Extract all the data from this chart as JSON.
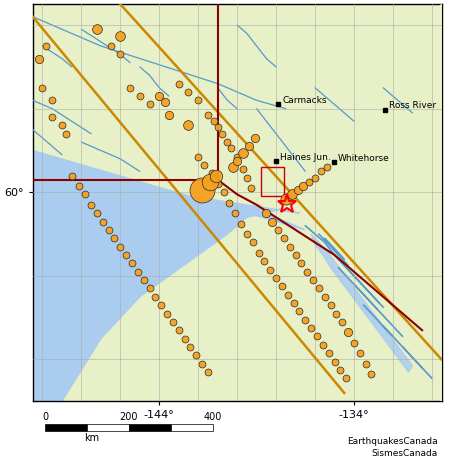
{
  "figsize": [
    4.49,
    4.58
  ],
  "dpi": 100,
  "xlim": [
    -150.5,
    -129.5
  ],
  "ylim": [
    55.0,
    64.5
  ],
  "land_color": "#e8f0c8",
  "ocean_color": "#aaccee",
  "river_color": "#5599cc",
  "cities": [
    {
      "name": "Carmacks",
      "lon": -137.9,
      "lat": 62.1
    },
    {
      "name": "Ross River",
      "lon": -132.4,
      "lat": 61.98
    },
    {
      "name": "Haines Jun.",
      "lon": -138.0,
      "lat": 60.75
    },
    {
      "name": "Whitehorse",
      "lon": -135.05,
      "lat": 60.72
    }
  ],
  "star": {
    "lon": -137.45,
    "lat": 59.72,
    "size": 14
  },
  "earthquakes": [
    {
      "lon": -147.2,
      "lat": 63.9,
      "ms": 7
    },
    {
      "lon": -146.0,
      "lat": 63.75,
      "ms": 7
    },
    {
      "lon": -144.0,
      "lat": 62.3,
      "ms": 6
    },
    {
      "lon": -143.7,
      "lat": 62.15,
      "ms": 6
    },
    {
      "lon": -141.5,
      "lat": 61.85,
      "ms": 5
    },
    {
      "lon": -141.2,
      "lat": 61.7,
      "ms": 5
    },
    {
      "lon": -141.0,
      "lat": 61.55,
      "ms": 5
    },
    {
      "lon": -140.8,
      "lat": 61.4,
      "ms": 5
    },
    {
      "lon": -140.5,
      "lat": 61.2,
      "ms": 5
    },
    {
      "lon": -140.3,
      "lat": 61.05,
      "ms": 5
    },
    {
      "lon": -140.0,
      "lat": 60.85,
      "ms": 5
    },
    {
      "lon": -139.7,
      "lat": 60.55,
      "ms": 5
    },
    {
      "lon": -139.5,
      "lat": 60.35,
      "ms": 5
    },
    {
      "lon": -139.3,
      "lat": 60.1,
      "ms": 5
    },
    {
      "lon": -142.0,
      "lat": 60.85,
      "ms": 5
    },
    {
      "lon": -141.7,
      "lat": 60.65,
      "ms": 5
    },
    {
      "lon": -141.3,
      "lat": 60.45,
      "ms": 5
    },
    {
      "lon": -141.0,
      "lat": 60.2,
      "ms": 5
    },
    {
      "lon": -140.7,
      "lat": 60.0,
      "ms": 5
    },
    {
      "lon": -140.4,
      "lat": 59.75,
      "ms": 5
    },
    {
      "lon": -140.1,
      "lat": 59.5,
      "ms": 5
    },
    {
      "lon": -139.8,
      "lat": 59.25,
      "ms": 5
    },
    {
      "lon": -139.5,
      "lat": 59.0,
      "ms": 5
    },
    {
      "lon": -139.2,
      "lat": 58.8,
      "ms": 5
    },
    {
      "lon": -138.9,
      "lat": 58.55,
      "ms": 5
    },
    {
      "lon": -138.6,
      "lat": 58.35,
      "ms": 5
    },
    {
      "lon": -138.3,
      "lat": 58.15,
      "ms": 5
    },
    {
      "lon": -138.0,
      "lat": 57.95,
      "ms": 5
    },
    {
      "lon": -137.7,
      "lat": 57.75,
      "ms": 5
    },
    {
      "lon": -137.4,
      "lat": 57.55,
      "ms": 5
    },
    {
      "lon": -137.1,
      "lat": 57.35,
      "ms": 5
    },
    {
      "lon": -136.8,
      "lat": 57.15,
      "ms": 5
    },
    {
      "lon": -136.5,
      "lat": 56.95,
      "ms": 5
    },
    {
      "lon": -136.2,
      "lat": 56.75,
      "ms": 5
    },
    {
      "lon": -135.9,
      "lat": 56.55,
      "ms": 5
    },
    {
      "lon": -135.6,
      "lat": 56.35,
      "ms": 5
    },
    {
      "lon": -135.3,
      "lat": 56.15,
      "ms": 5
    },
    {
      "lon": -135.0,
      "lat": 55.95,
      "ms": 5
    },
    {
      "lon": -134.7,
      "lat": 55.75,
      "ms": 5
    },
    {
      "lon": -134.4,
      "lat": 55.55,
      "ms": 5
    },
    {
      "lon": -148.5,
      "lat": 60.4,
      "ms": 5
    },
    {
      "lon": -148.1,
      "lat": 60.15,
      "ms": 5
    },
    {
      "lon": -147.8,
      "lat": 59.95,
      "ms": 5
    },
    {
      "lon": -147.5,
      "lat": 59.7,
      "ms": 5
    },
    {
      "lon": -147.2,
      "lat": 59.5,
      "ms": 5
    },
    {
      "lon": -146.9,
      "lat": 59.3,
      "ms": 5
    },
    {
      "lon": -146.6,
      "lat": 59.1,
      "ms": 5
    },
    {
      "lon": -146.3,
      "lat": 58.9,
      "ms": 5
    },
    {
      "lon": -146.0,
      "lat": 58.7,
      "ms": 5
    },
    {
      "lon": -145.7,
      "lat": 58.5,
      "ms": 5
    },
    {
      "lon": -145.4,
      "lat": 58.3,
      "ms": 5
    },
    {
      "lon": -145.1,
      "lat": 58.1,
      "ms": 5
    },
    {
      "lon": -144.8,
      "lat": 57.9,
      "ms": 5
    },
    {
      "lon": -144.5,
      "lat": 57.7,
      "ms": 5
    },
    {
      "lon": -144.2,
      "lat": 57.5,
      "ms": 5
    },
    {
      "lon": -143.9,
      "lat": 57.3,
      "ms": 5
    },
    {
      "lon": -143.6,
      "lat": 57.1,
      "ms": 5
    },
    {
      "lon": -143.3,
      "lat": 56.9,
      "ms": 5
    },
    {
      "lon": -143.0,
      "lat": 56.7,
      "ms": 5
    },
    {
      "lon": -142.7,
      "lat": 56.5,
      "ms": 5
    },
    {
      "lon": -142.4,
      "lat": 56.3,
      "ms": 5
    },
    {
      "lon": -142.1,
      "lat": 56.1,
      "ms": 5
    },
    {
      "lon": -141.8,
      "lat": 55.9,
      "ms": 5
    },
    {
      "lon": -141.5,
      "lat": 55.7,
      "ms": 5
    },
    {
      "lon": -141.8,
      "lat": 60.05,
      "ms": 18
    },
    {
      "lon": -141.4,
      "lat": 60.25,
      "ms": 12
    },
    {
      "lon": -141.1,
      "lat": 60.4,
      "ms": 9
    },
    {
      "lon": -140.2,
      "lat": 60.6,
      "ms": 7
    },
    {
      "lon": -140.0,
      "lat": 60.75,
      "ms": 6
    },
    {
      "lon": -139.7,
      "lat": 60.95,
      "ms": 7
    },
    {
      "lon": -139.4,
      "lat": 61.1,
      "ms": 6
    },
    {
      "lon": -139.1,
      "lat": 61.3,
      "ms": 6
    },
    {
      "lon": -142.5,
      "lat": 61.6,
      "ms": 7
    },
    {
      "lon": -143.5,
      "lat": 61.85,
      "ms": 6
    },
    {
      "lon": -137.5,
      "lat": 59.85,
      "ms": 8
    },
    {
      "lon": -137.2,
      "lat": 59.95,
      "ms": 7
    },
    {
      "lon": -136.9,
      "lat": 60.05,
      "ms": 6
    },
    {
      "lon": -136.6,
      "lat": 60.15,
      "ms": 6
    },
    {
      "lon": -136.3,
      "lat": 60.25,
      "ms": 5
    },
    {
      "lon": -136.0,
      "lat": 60.35,
      "ms": 5
    },
    {
      "lon": -135.7,
      "lat": 60.5,
      "ms": 5
    },
    {
      "lon": -135.4,
      "lat": 60.6,
      "ms": 5
    },
    {
      "lon": -149.5,
      "lat": 61.8,
      "ms": 5
    },
    {
      "lon": -149.0,
      "lat": 61.6,
      "ms": 5
    },
    {
      "lon": -148.8,
      "lat": 61.4,
      "ms": 5
    },
    {
      "lon": -150.0,
      "lat": 62.5,
      "ms": 5
    },
    {
      "lon": -149.5,
      "lat": 62.2,
      "ms": 5
    },
    {
      "lon": -145.5,
      "lat": 62.5,
      "ms": 5
    },
    {
      "lon": -145.0,
      "lat": 62.3,
      "ms": 5
    },
    {
      "lon": -144.5,
      "lat": 62.1,
      "ms": 5
    },
    {
      "lon": -143.0,
      "lat": 62.6,
      "ms": 5
    },
    {
      "lon": -142.5,
      "lat": 62.4,
      "ms": 5
    },
    {
      "lon": -142.0,
      "lat": 62.2,
      "ms": 5
    },
    {
      "lon": -138.5,
      "lat": 59.5,
      "ms": 6
    },
    {
      "lon": -138.2,
      "lat": 59.3,
      "ms": 6
    },
    {
      "lon": -137.9,
      "lat": 59.1,
      "ms": 5
    },
    {
      "lon": -137.6,
      "lat": 58.9,
      "ms": 5
    },
    {
      "lon": -137.3,
      "lat": 58.7,
      "ms": 5
    },
    {
      "lon": -137.0,
      "lat": 58.5,
      "ms": 5
    },
    {
      "lon": -136.7,
      "lat": 58.3,
      "ms": 5
    },
    {
      "lon": -136.4,
      "lat": 58.1,
      "ms": 5
    },
    {
      "lon": -136.1,
      "lat": 57.9,
      "ms": 5
    },
    {
      "lon": -135.8,
      "lat": 57.7,
      "ms": 5
    },
    {
      "lon": -135.5,
      "lat": 57.5,
      "ms": 5
    },
    {
      "lon": -135.2,
      "lat": 57.3,
      "ms": 5
    },
    {
      "lon": -134.9,
      "lat": 57.1,
      "ms": 5
    },
    {
      "lon": -134.6,
      "lat": 56.9,
      "ms": 5
    },
    {
      "lon": -134.3,
      "lat": 56.65,
      "ms": 6
    },
    {
      "lon": -134.0,
      "lat": 56.4,
      "ms": 5
    },
    {
      "lon": -133.7,
      "lat": 56.15,
      "ms": 5
    },
    {
      "lon": -133.4,
      "lat": 55.9,
      "ms": 5
    },
    {
      "lon": -133.1,
      "lat": 55.65,
      "ms": 5
    },
    {
      "lon": -150.2,
      "lat": 63.2,
      "ms": 6
    },
    {
      "lon": -149.8,
      "lat": 63.5,
      "ms": 5
    },
    {
      "lon": -146.5,
      "lat": 63.5,
      "ms": 5
    },
    {
      "lon": -146.0,
      "lat": 63.3,
      "ms": 5
    }
  ],
  "eq_color": "#f5a020",
  "eq_edge_color": "#222222",
  "xlabel_ticks": [
    -144,
    -134
  ],
  "ylabel_ticks": [
    60
  ],
  "attribution": "EarthquakesCanada\nSismesCanada"
}
